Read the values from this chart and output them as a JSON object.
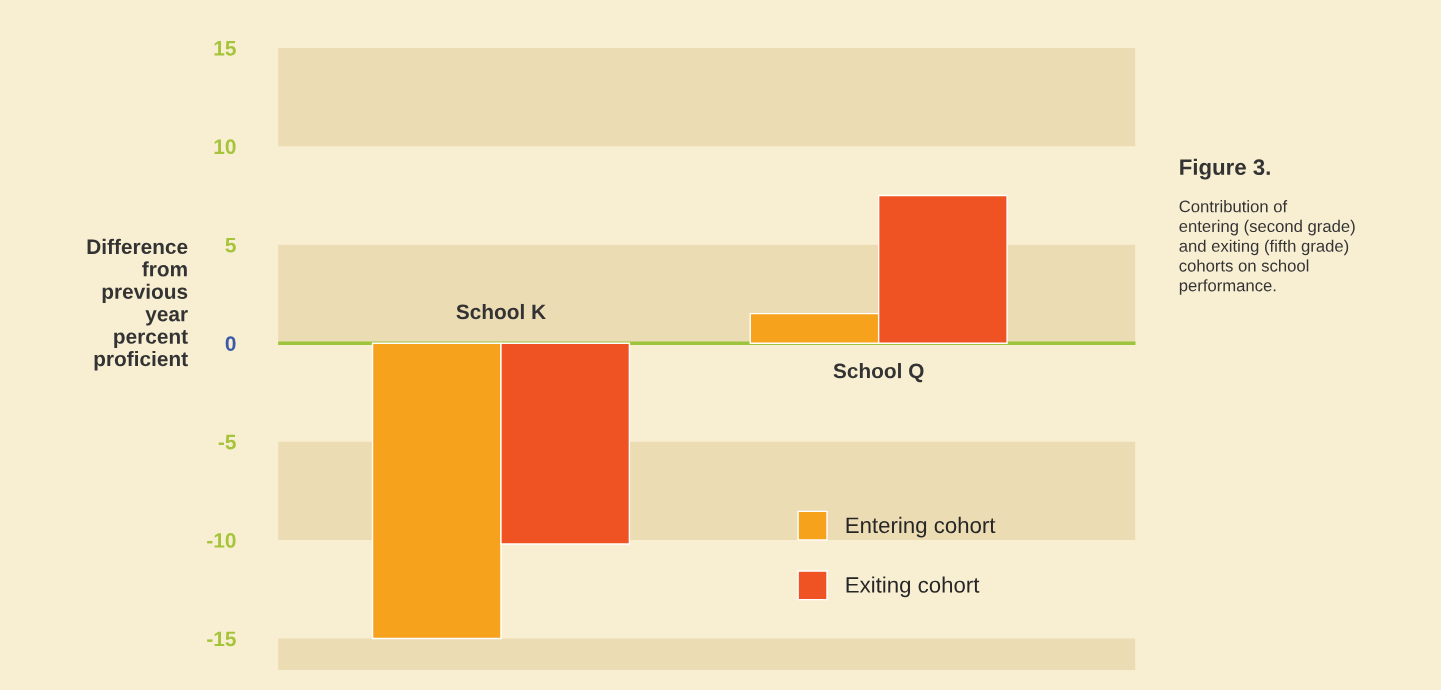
{
  "chart_data": {
    "type": "bar",
    "title": "Figure 3.",
    "subtitle": "Contribution of\nentering (second grade)\nand exiting (fifth grade)\ncohorts on school\nperformance.",
    "ylabel": "Difference\nfrom\nprevious\nyear\npercent\nproficient",
    "categories": [
      "School K",
      "School Q"
    ],
    "series": [
      {
        "name": "Entering cohort",
        "color": "#f6a21d",
        "values": [
          -15,
          1.5
        ]
      },
      {
        "name": "Exiting cohort",
        "color": "#ef5323",
        "values": [
          -10.2,
          7.5
        ]
      }
    ],
    "ylim": [
      -16.6,
      15.4
    ],
    "yticks": [
      15,
      10,
      5,
      0,
      -5,
      -10,
      -15
    ],
    "bands": [
      {
        "axis": "y",
        "from": 10,
        "to": 15,
        "color": "#ecdcb4"
      },
      {
        "axis": "y",
        "from": 0,
        "to": 5,
        "color": "#ecdcb4"
      },
      {
        "axis": "y",
        "from": -10,
        "to": -5,
        "color": "#ecdcb4"
      },
      {
        "axis": "y",
        "from": -16.6,
        "to": -15,
        "color": "#ecdcb4"
      }
    ],
    "ref_lines": [
      {
        "axis": "y",
        "value": 0,
        "color": "#9cc43c"
      }
    ],
    "legend": "bottom right",
    "grid": false
  }
}
